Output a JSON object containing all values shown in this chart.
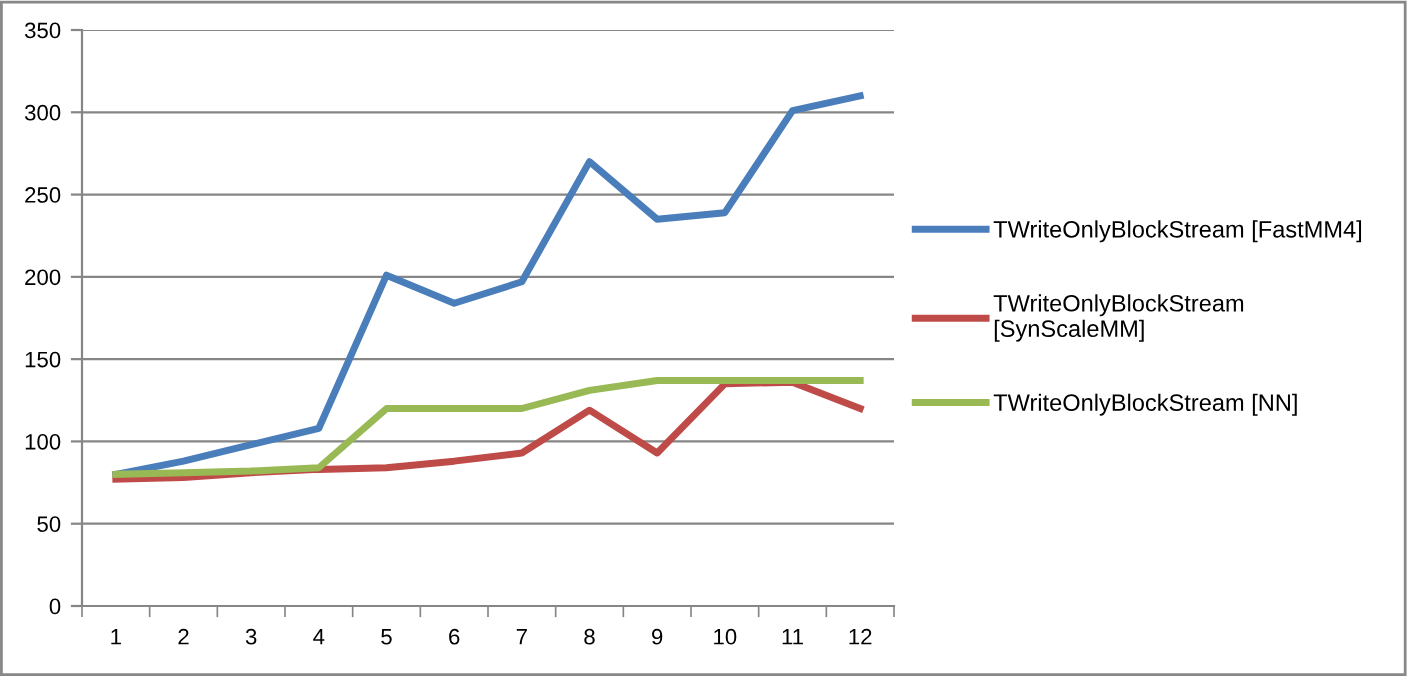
{
  "chart_data": {
    "type": "line",
    "categories": [
      "1",
      "2",
      "3",
      "4",
      "5",
      "6",
      "7",
      "8",
      "9",
      "10",
      "11",
      "12"
    ],
    "series": [
      {
        "name": "TWriteOnlyBlockStream [FastMM4]",
        "color": "#4a7ebb",
        "values": [
          80,
          88,
          98,
          108,
          201,
          184,
          197,
          270,
          235,
          239,
          301,
          310
        ]
      },
      {
        "name": "TWriteOnlyBlockStream\n[SynScaleMM]",
        "color": "#be4b48",
        "values": [
          77,
          78,
          81,
          83,
          84,
          88,
          93,
          119,
          93,
          135,
          136,
          120
        ]
      },
      {
        "name": "TWriteOnlyBlockStream [NN]",
        "color": "#98b954",
        "values": [
          80,
          81,
          82,
          84,
          120,
          120,
          120,
          131,
          137,
          137,
          137,
          137
        ]
      }
    ],
    "ylim": [
      0,
      350
    ],
    "yticks": [
      0,
      50,
      100,
      150,
      200,
      250,
      300,
      350
    ],
    "grid": "y",
    "legend": "right",
    "marker": "none",
    "line_style": "solid"
  }
}
